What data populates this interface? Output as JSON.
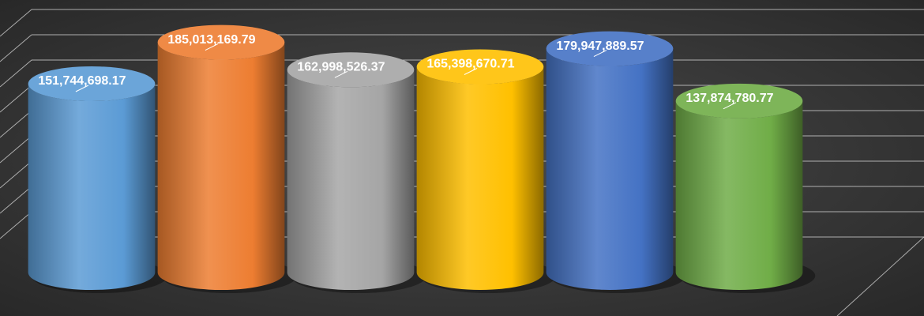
{
  "chart_data": {
    "type": "bar",
    "values": [
      151744698.17,
      185013169.79,
      162998526.37,
      165398670.71,
      179947889.57,
      137874780.77
    ],
    "value_labels": [
      "151,744,698.17",
      "185,013,169.79",
      "162,998,526.37",
      "165,398,670.71",
      "179,947,889.57",
      "137,874,780.77"
    ],
    "colors": [
      "#5b9bd5",
      "#ed7d31",
      "#a5a5a5",
      "#ffc000",
      "#4472c4",
      "#70ad47"
    ],
    "ylim": [
      0,
      200000000
    ],
    "grid": true
  }
}
